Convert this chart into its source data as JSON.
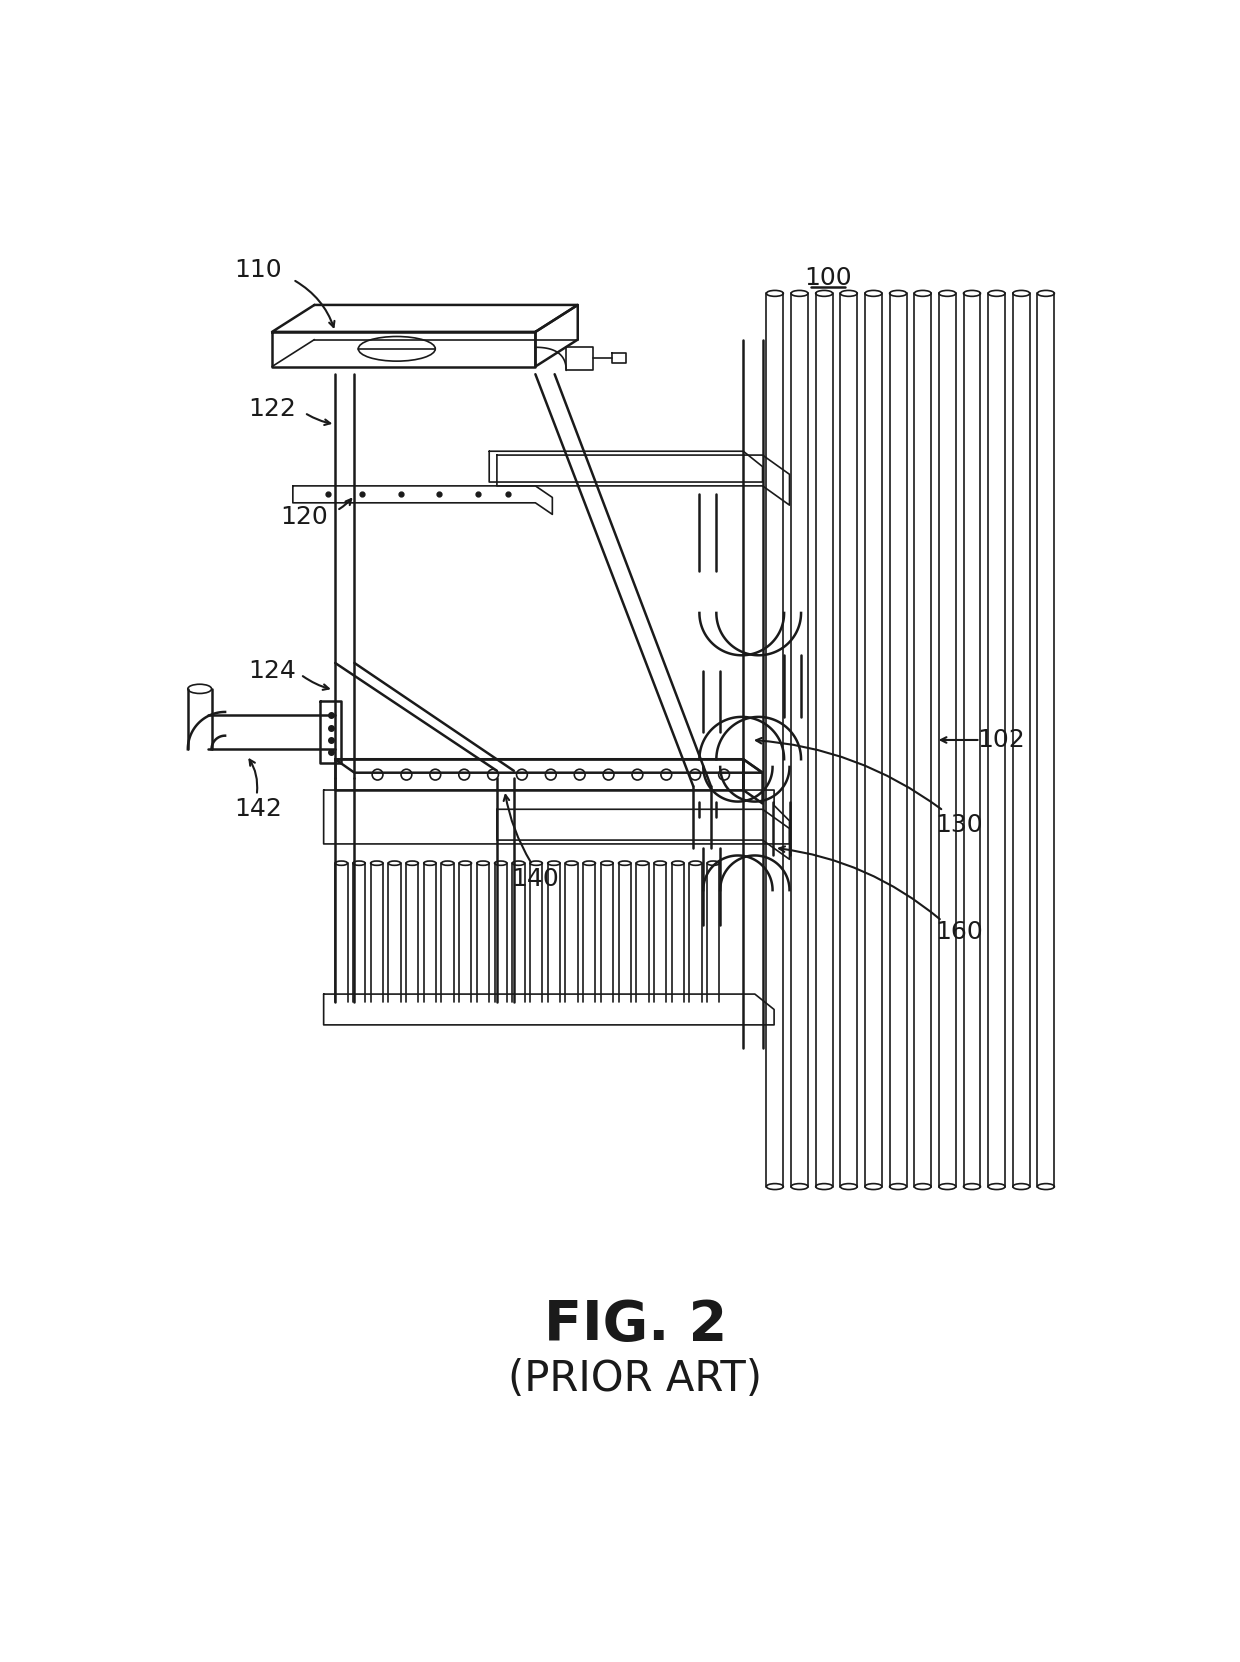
{
  "bg_color": "#ffffff",
  "line_color": "#1a1a1a",
  "lw_thin": 1.2,
  "lw_med": 1.8,
  "lw_thick": 2.5,
  "label_fontsize": 18,
  "title_fontsize": 40,
  "subtitle_fontsize": 30,
  "title": "FIG. 2",
  "subtitle": "(PRIOR ART)",
  "fig_w": 12.4,
  "fig_h": 16.62,
  "dpi": 100
}
